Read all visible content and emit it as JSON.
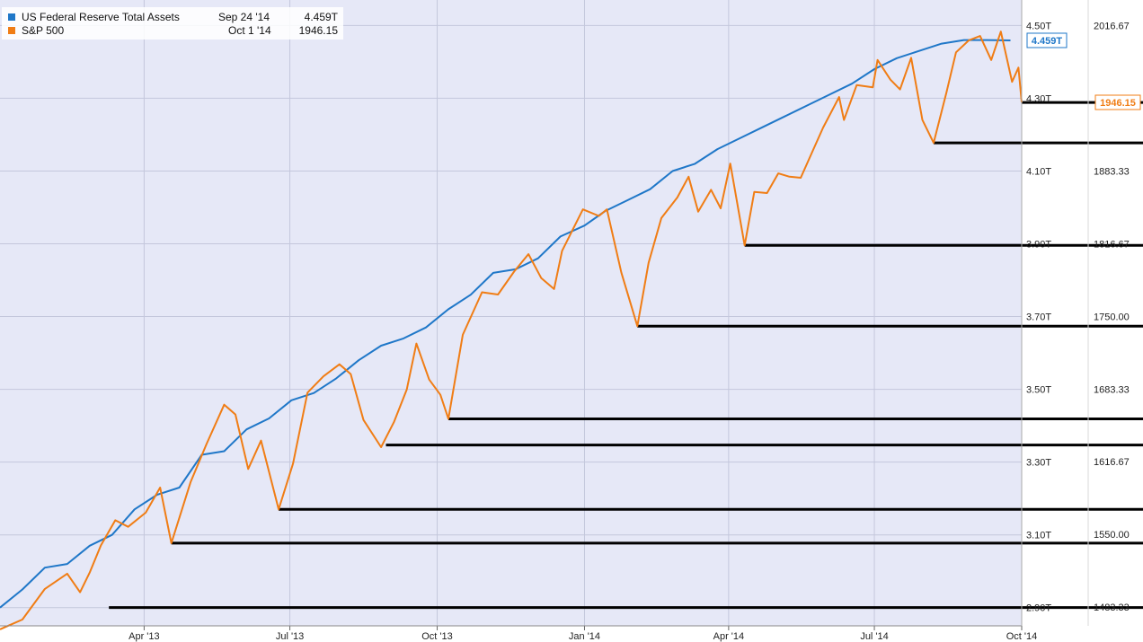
{
  "legend": [
    {
      "name": "US Federal Reserve Total Assets",
      "date": "Sep 24 '14",
      "value": "4.459T",
      "color": "#1f77c8"
    },
    {
      "name": "S&P 500",
      "date": "Oct 1 '14",
      "value": "1946.15",
      "color": "#f07d15"
    }
  ],
  "chart_data": {
    "type": "line",
    "x_tick_labels": [
      "Apr '13",
      "Jul '13",
      "Oct '13",
      "Jan '14",
      "Apr '14",
      "Jul '14",
      "Oct '14"
    ],
    "x_range": [
      "2013-01-01",
      "2014-10-01"
    ],
    "y_left": {
      "range": [
        2.85,
        4.57
      ],
      "unit": "T",
      "tick_labels": [
        "4.50T",
        "4.30T",
        "4.10T",
        "3.90T",
        "3.70T",
        "3.50T",
        "3.30T",
        "3.10T",
        "2.90T"
      ]
    },
    "y_right": {
      "range": [
        1466.2,
        2040.0
      ],
      "tick_labels": [
        "2016.67",
        "1883.33",
        "1816.67",
        "1750.00",
        "1683.33",
        "1616.67",
        "1550.00",
        "1483.33"
      ]
    },
    "series": [
      {
        "name": "US Federal Reserve Total Assets",
        "axis": "left",
        "color": "#1f77c8",
        "last_value_label": "4.459T",
        "points": [
          [
            "2013-01-01",
            2.9
          ],
          [
            "2013-01-15",
            2.95
          ],
          [
            "2013-01-29",
            3.01
          ],
          [
            "2013-02-12",
            3.02
          ],
          [
            "2013-02-26",
            3.07
          ],
          [
            "2013-03-12",
            3.1
          ],
          [
            "2013-03-26",
            3.17
          ],
          [
            "2013-04-09",
            3.21
          ],
          [
            "2013-04-23",
            3.23
          ],
          [
            "2013-05-07",
            3.32
          ],
          [
            "2013-05-21",
            3.33
          ],
          [
            "2013-06-04",
            3.39
          ],
          [
            "2013-06-18",
            3.42
          ],
          [
            "2013-07-02",
            3.47
          ],
          [
            "2013-07-16",
            3.49
          ],
          [
            "2013-07-30",
            3.53
          ],
          [
            "2013-08-13",
            3.58
          ],
          [
            "2013-08-27",
            3.62
          ],
          [
            "2013-09-10",
            3.64
          ],
          [
            "2013-09-24",
            3.67
          ],
          [
            "2013-10-08",
            3.72
          ],
          [
            "2013-10-22",
            3.76
          ],
          [
            "2013-11-05",
            3.82
          ],
          [
            "2013-11-19",
            3.83
          ],
          [
            "2013-12-03",
            3.86
          ],
          [
            "2013-12-17",
            3.92
          ],
          [
            "2014-01-01",
            3.95
          ],
          [
            "2014-01-14",
            3.99
          ],
          [
            "2014-01-28",
            4.02
          ],
          [
            "2014-02-11",
            4.05
          ],
          [
            "2014-02-25",
            4.1
          ],
          [
            "2014-03-11",
            4.12
          ],
          [
            "2014-03-25",
            4.16
          ],
          [
            "2014-04-08",
            4.19
          ],
          [
            "2014-04-22",
            4.22
          ],
          [
            "2014-05-06",
            4.25
          ],
          [
            "2014-05-20",
            4.28
          ],
          [
            "2014-06-03",
            4.31
          ],
          [
            "2014-06-17",
            4.34
          ],
          [
            "2014-07-01",
            4.38
          ],
          [
            "2014-07-15",
            4.41
          ],
          [
            "2014-07-29",
            4.43
          ],
          [
            "2014-08-12",
            4.45
          ],
          [
            "2014-08-26",
            4.46
          ],
          [
            "2014-09-09",
            4.46
          ],
          [
            "2014-09-24",
            4.459
          ]
        ]
      },
      {
        "name": "S&P 500",
        "axis": "right",
        "color": "#f07d15",
        "last_value_label": "1946.15",
        "points": [
          [
            "2013-01-01",
            1463
          ],
          [
            "2013-01-15",
            1472
          ],
          [
            "2013-01-29",
            1500
          ],
          [
            "2013-02-12",
            1514
          ],
          [
            "2013-02-20",
            1497
          ],
          [
            "2013-02-26",
            1515
          ],
          [
            "2013-03-05",
            1540
          ],
          [
            "2013-03-14",
            1563
          ],
          [
            "2013-03-22",
            1557
          ],
          [
            "2013-04-02",
            1570
          ],
          [
            "2013-04-11",
            1593
          ],
          [
            "2013-04-18",
            1542
          ],
          [
            "2013-04-30",
            1598
          ],
          [
            "2013-05-10",
            1633
          ],
          [
            "2013-05-21",
            1669
          ],
          [
            "2013-05-28",
            1660
          ],
          [
            "2013-06-05",
            1610
          ],
          [
            "2013-06-13",
            1636
          ],
          [
            "2013-06-24",
            1573
          ],
          [
            "2013-07-03",
            1615
          ],
          [
            "2013-07-12",
            1680
          ],
          [
            "2013-07-22",
            1695
          ],
          [
            "2013-08-01",
            1706
          ],
          [
            "2013-08-08",
            1697
          ],
          [
            "2013-08-16",
            1655
          ],
          [
            "2013-08-27",
            1630
          ],
          [
            "2013-09-04",
            1653
          ],
          [
            "2013-09-12",
            1683
          ],
          [
            "2013-09-18",
            1725
          ],
          [
            "2013-09-26",
            1692
          ],
          [
            "2013-10-03",
            1678
          ],
          [
            "2013-10-08",
            1656
          ],
          [
            "2013-10-17",
            1733
          ],
          [
            "2013-10-29",
            1772
          ],
          [
            "2013-11-08",
            1770
          ],
          [
            "2013-11-18",
            1791
          ],
          [
            "2013-11-27",
            1807
          ],
          [
            "2013-12-05",
            1785
          ],
          [
            "2013-12-13",
            1775
          ],
          [
            "2013-12-18",
            1810
          ],
          [
            "2013-12-31",
            1848
          ],
          [
            "2014-01-10",
            1842
          ],
          [
            "2014-01-15",
            1848
          ],
          [
            "2014-01-24",
            1790
          ],
          [
            "2014-02-03",
            1741
          ],
          [
            "2014-02-10",
            1799
          ],
          [
            "2014-02-18",
            1840
          ],
          [
            "2014-02-28",
            1859
          ],
          [
            "2014-03-07",
            1878
          ],
          [
            "2014-03-13",
            1846
          ],
          [
            "2014-03-21",
            1866
          ],
          [
            "2014-03-27",
            1849
          ],
          [
            "2014-04-02",
            1890
          ],
          [
            "2014-04-11",
            1815
          ],
          [
            "2014-04-17",
            1864
          ],
          [
            "2014-04-25",
            1863
          ],
          [
            "2014-05-02",
            1881
          ],
          [
            "2014-05-09",
            1878
          ],
          [
            "2014-05-16",
            1877
          ],
          [
            "2014-05-23",
            1900
          ],
          [
            "2014-05-30",
            1923
          ],
          [
            "2014-06-09",
            1951
          ],
          [
            "2014-06-12",
            1930
          ],
          [
            "2014-06-20",
            1962
          ],
          [
            "2014-06-30",
            1960
          ],
          [
            "2014-07-03",
            1985
          ],
          [
            "2014-07-11",
            1967
          ],
          [
            "2014-07-17",
            1958
          ],
          [
            "2014-07-24",
            1987
          ],
          [
            "2014-07-31",
            1930
          ],
          [
            "2014-08-07",
            1909
          ],
          [
            "2014-08-15",
            1955
          ],
          [
            "2014-08-21",
            1992
          ],
          [
            "2014-08-29",
            2003
          ],
          [
            "2014-09-05",
            2007
          ],
          [
            "2014-09-12",
            1985
          ],
          [
            "2014-09-18",
            2011
          ],
          [
            "2014-09-25",
            1965
          ],
          [
            "2014-09-29",
            1978
          ],
          [
            "2014-10-01",
            1946.15
          ]
        ]
      }
    ],
    "support_lines": [
      {
        "start": "2013-03-10",
        "value": 1483
      },
      {
        "start": "2013-04-18",
        "value": 1542
      },
      {
        "start": "2013-06-24",
        "value": 1573
      },
      {
        "start": "2013-08-30",
        "value": 1632
      },
      {
        "start": "2013-10-08",
        "value": 1656
      },
      {
        "start": "2014-02-03",
        "value": 1741
      },
      {
        "start": "2014-04-11",
        "value": 1815
      },
      {
        "start": "2014-08-07",
        "value": 1909
      },
      {
        "start": "2014-10-01",
        "value": 1946
      }
    ]
  }
}
